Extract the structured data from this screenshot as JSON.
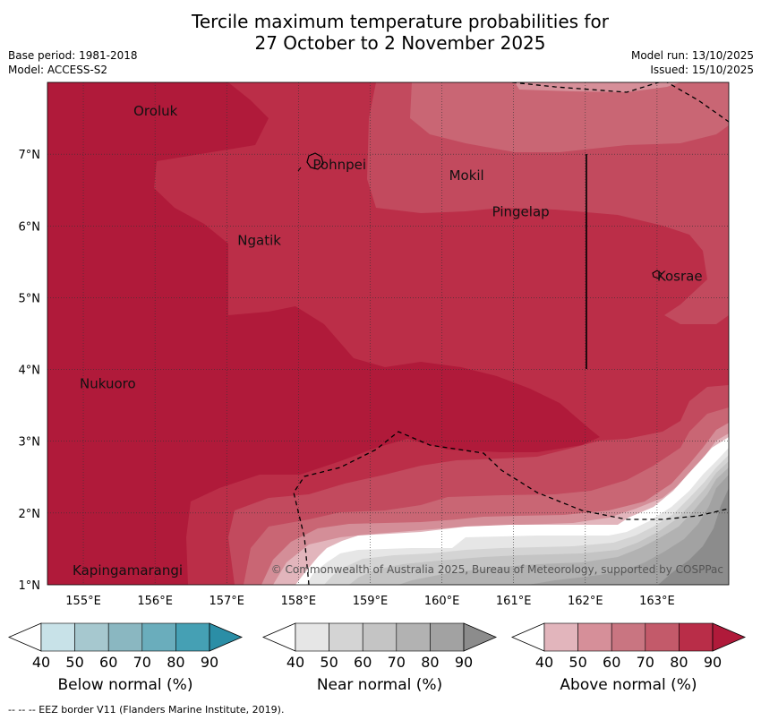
{
  "title_line1": "Tercile maximum temperature probabilities for",
  "title_line2": "27 October to 2 November 2025",
  "meta": {
    "base_period": "Base period: 1981-2018",
    "model": "Model: ACCESS-S2",
    "model_run": "Model run: 13/10/2025",
    "issued": "Issued: 15/10/2025"
  },
  "map": {
    "lon_range": [
      154.5,
      164.0
    ],
    "lat_range": [
      1.0,
      8.0
    ],
    "lon_ticks": [
      "155°E",
      "156°E",
      "157°E",
      "158°E",
      "159°E",
      "160°E",
      "161°E",
      "162°E",
      "163°E"
    ],
    "lat_ticks": [
      "1°N",
      "2°N",
      "3°N",
      "4°N",
      "5°N",
      "6°N",
      "7°N"
    ],
    "places": [
      {
        "name": "Oroluk",
        "lon": 155.7,
        "lat": 7.6
      },
      {
        "name": "Pohnpei",
        "lon": 158.2,
        "lat": 6.85
      },
      {
        "name": "Mokil",
        "lon": 160.1,
        "lat": 6.7
      },
      {
        "name": "Pingelap",
        "lon": 160.7,
        "lat": 6.2
      },
      {
        "name": "Ngatik",
        "lon": 157.15,
        "lat": 5.8
      },
      {
        "name": "Kosrae",
        "lon": 163.0,
        "lat": 5.3
      },
      {
        "name": "Nukuoro",
        "lon": 154.95,
        "lat": 3.8
      },
      {
        "name": "Kapingamarangi",
        "lon": 154.85,
        "lat": 1.2
      }
    ],
    "copyright": "© Commonwealth of Australia 2025, Bureau of Meteorology, supported by COSPPac"
  },
  "legends": [
    {
      "label": "Below normal (%)",
      "colors": [
        "#c8e2e8",
        "#a6c8cf",
        "#8ab7c1",
        "#6aadbc",
        "#45a0b4",
        "#2b8ea6"
      ],
      "ticks": [
        "40",
        "50",
        "60",
        "70",
        "80",
        "90"
      ]
    },
    {
      "label": "Near normal (%)",
      "colors": [
        "#e6e6e6",
        "#d4d4d4",
        "#c4c4c4",
        "#b2b2b2",
        "#a2a2a2",
        "#8c8c8c"
      ],
      "ticks": [
        "40",
        "50",
        "60",
        "70",
        "80",
        "90"
      ]
    },
    {
      "label": "Above normal (%)",
      "colors": [
        "#e2b5bc",
        "#d68f99",
        "#c97581",
        "#c35a6a",
        "#b92d48",
        "#b01a3a"
      ],
      "ticks": [
        "40",
        "50",
        "60",
        "70",
        "80",
        "90"
      ]
    }
  ],
  "footer": "--  --  -- EEZ border V11 (Flanders Marine Institute, 2019)."
}
